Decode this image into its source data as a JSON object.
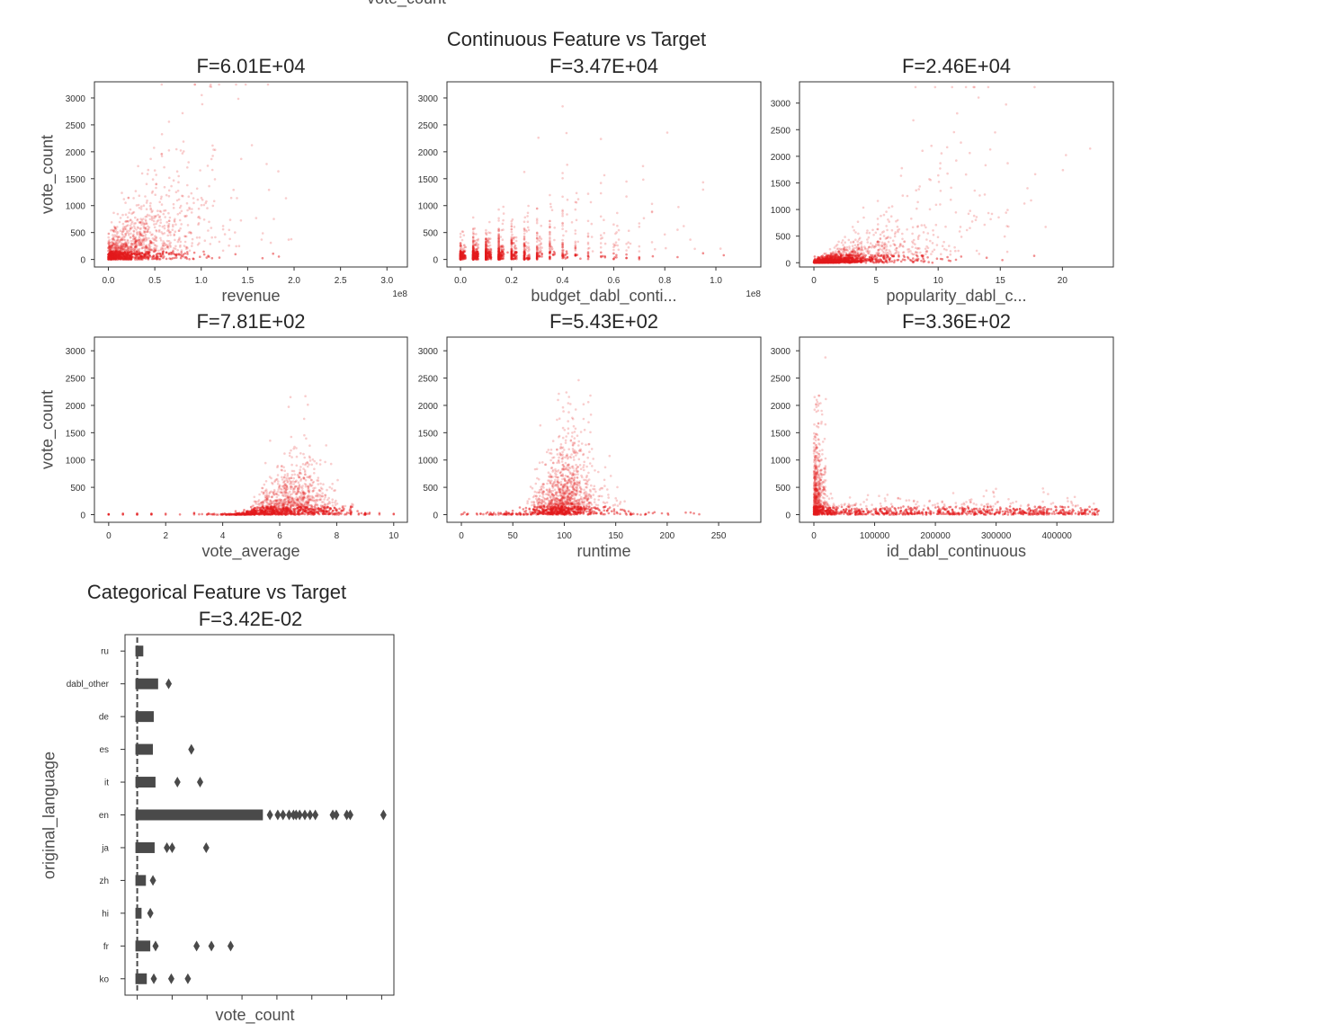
{
  "top_cut_label": "vote_count",
  "continuous_title": "Continuous Feature vs Target",
  "categorical_title": "Categorical Feature vs Target",
  "colors": {
    "points": "#e41a1c",
    "box": "#4a4a4a",
    "axes": "#333333"
  },
  "chart_data": [
    {
      "type": "scatter",
      "title": "F=6.01E+04",
      "xlabel": "revenue",
      "ylabel": "vote_count",
      "x_offset_text": "1e8",
      "xlim": [
        -0.15,
        3.22
      ],
      "ylim": [
        -140,
        3300
      ],
      "xticks": [
        0,
        0.5,
        1,
        1.5,
        2,
        2.5,
        3
      ],
      "xtick_labels": [
        "0.0",
        "0.5",
        "1.0",
        "1.5",
        "2.0",
        "2.5",
        "3.0"
      ],
      "yticks": [
        0,
        500,
        1000,
        1500,
        2000,
        2500,
        3000
      ],
      "ytick_labels": [
        "0",
        "500",
        "1000",
        "1500",
        "2000",
        "2500",
        "3000"
      ],
      "pattern": "revenue"
    },
    {
      "type": "scatter",
      "title": "F=3.47E+04",
      "xlabel": "budget_dabl_conti...",
      "ylabel": "",
      "x_offset_text": "1e8",
      "xlim": [
        -0.053,
        1.176
      ],
      "ylim": [
        -140,
        3300
      ],
      "xticks": [
        0,
        0.2,
        0.4,
        0.6,
        0.8,
        1.0
      ],
      "xtick_labels": [
        "0.0",
        "0.2",
        "0.4",
        "0.6",
        "0.8",
        "1.0"
      ],
      "yticks": [
        0,
        500,
        1000,
        1500,
        2000,
        2500,
        3000
      ],
      "ytick_labels": [
        "0",
        "500",
        "1000",
        "1500",
        "2000",
        "2500",
        "3000"
      ],
      "pattern": "budget"
    },
    {
      "type": "scatter",
      "title": "F=2.46E+04",
      "xlabel": "popularity_dabl_c...",
      "ylabel": "",
      "x_offset_text": "",
      "xlim": [
        -1.16,
        24.1
      ],
      "ylim": [
        -80,
        3400
      ],
      "xticks": [
        0,
        5,
        10,
        15,
        20
      ],
      "xtick_labels": [
        "0",
        "5",
        "10",
        "15",
        "20"
      ],
      "yticks": [
        0,
        500,
        1000,
        1500,
        2000,
        2500,
        3000
      ],
      "ytick_labels": [
        "0",
        "500",
        "1000",
        "1500",
        "2000",
        "2500",
        "3000"
      ],
      "pattern": "popularity"
    },
    {
      "type": "scatter",
      "title": "F=7.81E+02",
      "xlabel": "vote_average",
      "ylabel": "vote_count",
      "x_offset_text": "",
      "xlim": [
        -0.5,
        10.48
      ],
      "ylim": [
        -140,
        3250
      ],
      "xticks": [
        0,
        2,
        4,
        6,
        8,
        10
      ],
      "xtick_labels": [
        "0",
        "2",
        "4",
        "6",
        "8",
        "10"
      ],
      "yticks": [
        0,
        500,
        1000,
        1500,
        2000,
        2500,
        3000
      ],
      "ytick_labels": [
        "0",
        "500",
        "1000",
        "1500",
        "2000",
        "2500",
        "3000"
      ],
      "pattern": "vote_average"
    },
    {
      "type": "scatter",
      "title": "F=5.43E+02",
      "xlabel": "runtime",
      "ylabel": "",
      "x_offset_text": "",
      "xlim": [
        -14,
        291
      ],
      "ylim": [
        -140,
        3250
      ],
      "xticks": [
        0,
        50,
        100,
        150,
        200,
        250
      ],
      "xtick_labels": [
        "0",
        "50",
        "100",
        "150",
        "200",
        "250"
      ],
      "yticks": [
        0,
        500,
        1000,
        1500,
        2000,
        2500,
        3000
      ],
      "ytick_labels": [
        "0",
        "500",
        "1000",
        "1500",
        "2000",
        "2500",
        "3000"
      ],
      "pattern": "runtime"
    },
    {
      "type": "scatter",
      "title": "F=3.36E+02",
      "xlabel": "id_dabl_continuous",
      "ylabel": "",
      "x_offset_text": "",
      "xlim": [
        -23700,
        493000
      ],
      "ylim": [
        -140,
        3250
      ],
      "xticks": [
        0,
        100000,
        200000,
        300000,
        400000
      ],
      "xtick_labels": [
        "0",
        "100000",
        "200000",
        "300000",
        "400000"
      ],
      "yticks": [
        0,
        500,
        1000,
        1500,
        2000,
        2500,
        3000
      ],
      "ytick_labels": [
        "0",
        "500",
        "1000",
        "1500",
        "2000",
        "2500",
        "3000"
      ],
      "pattern": "id"
    },
    {
      "type": "box",
      "orientation": "horizontal",
      "title": "F=3.42E-02",
      "xlabel": "vote_count",
      "ylabel": "original_language",
      "xlim": [
        -700,
        14700
      ],
      "xticks": [
        0,
        2000,
        4000,
        6000,
        8000,
        10000,
        12000,
        14000
      ],
      "xtick_labels_visible": false,
      "categories": [
        "ru",
        "dabl_other",
        "de",
        "es",
        "it",
        "en",
        "ja",
        "zh",
        "hi",
        "fr",
        "ko"
      ],
      "whisker_max": [
        450,
        1300,
        1050,
        1000,
        1150,
        7300,
        1100,
        600,
        350,
        850,
        650
      ],
      "outliers": [
        [],
        [
          1800
        ],
        [],
        [
          3100
        ],
        [
          2300,
          3600
        ],
        [
          7600,
          8050,
          8350,
          8700,
          8950,
          9100,
          9300,
          9600,
          9900,
          10200,
          11200,
          11400,
          12000,
          12200,
          14100
        ],
        [
          1700,
          2000,
          3950
        ],
        [
          900
        ],
        [
          750
        ],
        [
          1050,
          3400,
          4250,
          5350
        ],
        [
          950,
          1950,
          2900
        ]
      ]
    }
  ]
}
